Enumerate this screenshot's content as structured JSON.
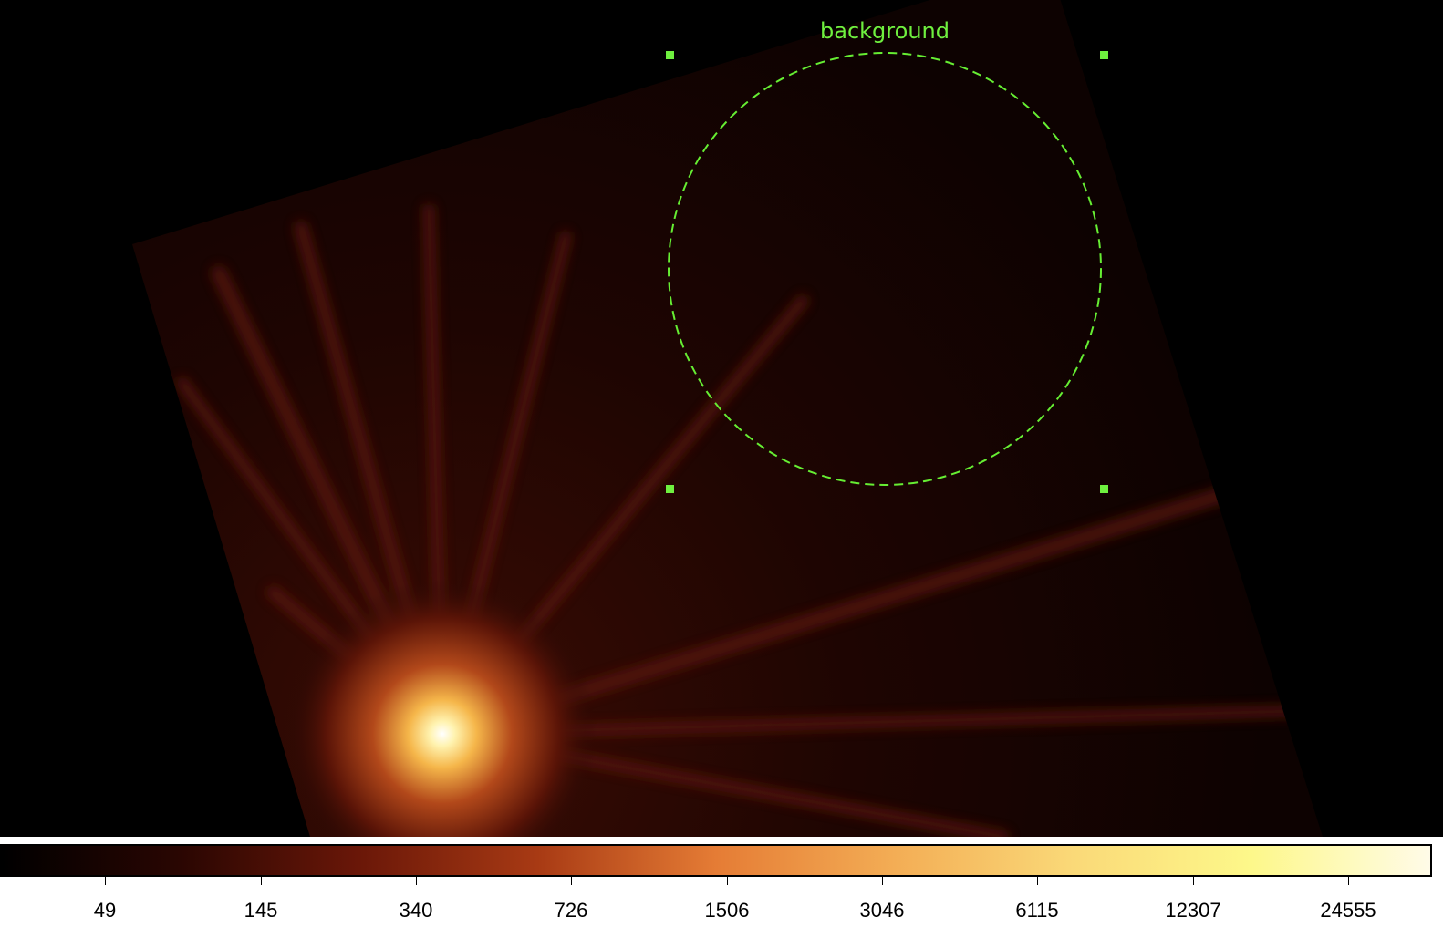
{
  "region": {
    "label": "background",
    "color": "#66ee33",
    "shape": "circle",
    "line_style": "dashed",
    "selected": true
  },
  "colorbar": {
    "colormap": "heat",
    "scale": "log",
    "ticks": [
      "49",
      "145",
      "340",
      "726",
      "1506",
      "3046",
      "6115",
      "12307",
      "24555"
    ],
    "colors": [
      "#000000",
      "#2a0602",
      "#6a1708",
      "#a83a14",
      "#e57c35",
      "#f3ad55",
      "#fad978",
      "#fdf88a",
      "#fffbe8"
    ]
  }
}
